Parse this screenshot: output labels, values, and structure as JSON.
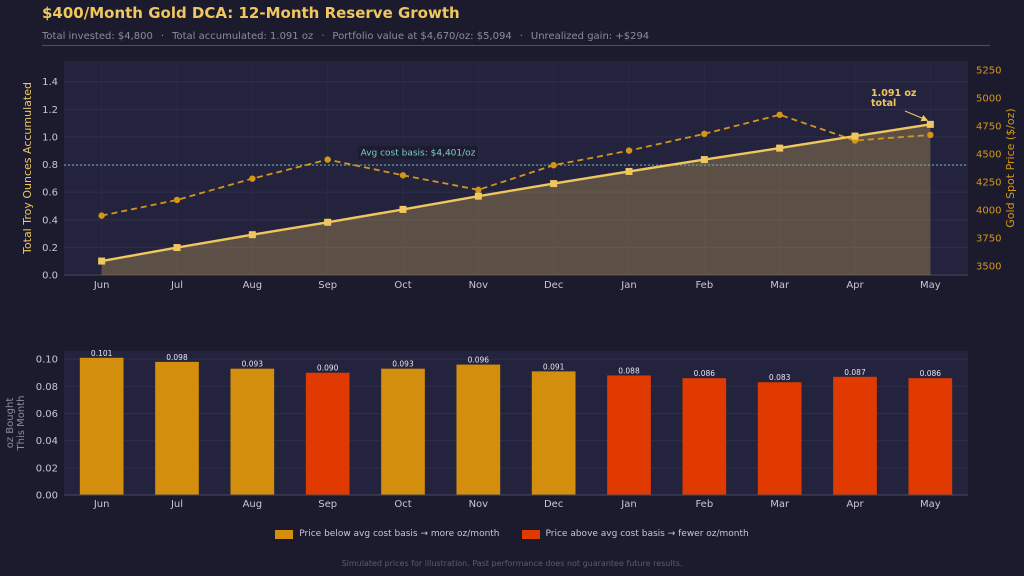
{
  "title": "$400/Month Gold DCA: 12-Month Reserve Growth",
  "summary": [
    "Total invested: $4,800",
    "Total accumulated: 1.091 oz",
    "Portfolio value at $4,670/oz: $5,094",
    "Unrealized gain: +$294"
  ],
  "summary_separator": "·",
  "colors": {
    "accent_gold": "#f0c75e",
    "price_line": "#d4961a",
    "bar_below": "#d28e0c",
    "bar_above": "#e03a00",
    "cost_line": "#5fb8a8"
  },
  "chart_data": [
    {
      "type": "line",
      "title": "",
      "categories": [
        "Jun",
        "Jul",
        "Aug",
        "Sep",
        "Oct",
        "Nov",
        "Dec",
        "Jan",
        "Feb",
        "Mar",
        "Apr",
        "May"
      ],
      "ylabel": "Total Troy Ounces Accumulated",
      "ylim": [
        0,
        1.55
      ],
      "yticks": [
        0.0,
        0.2,
        0.4,
        0.6,
        0.8,
        1.0,
        1.2,
        1.4
      ],
      "y2label": "Gold Spot Price ($/oz)",
      "y2lim": [
        3420,
        5330
      ],
      "y2ticks": [
        3500,
        3750,
        4000,
        4250,
        4500,
        4750,
        5000,
        5250
      ],
      "grid": true,
      "series": [
        {
          "name": "",
          "axis": "left",
          "style": "solid-area",
          "values": [
            0.101,
            0.199,
            0.292,
            0.382,
            0.475,
            0.571,
            0.662,
            0.75,
            0.836,
            0.919,
            1.006,
            1.091
          ]
        },
        {
          "name": "",
          "axis": "right",
          "style": "dashed",
          "values": [
            3950,
            4090,
            4280,
            4450,
            4310,
            4180,
            4400,
            4530,
            4680,
            4850,
            4620,
            4670
          ]
        }
      ],
      "reference_line": {
        "label": "Avg cost basis: $4,401/oz",
        "value": 4401,
        "axis": "right"
      },
      "annotation": {
        "line1": "1.091 oz",
        "line2": "total",
        "target_index": 11
      }
    },
    {
      "type": "bar",
      "title": "",
      "categories": [
        "Jun",
        "Jul",
        "Aug",
        "Sep",
        "Oct",
        "Nov",
        "Dec",
        "Jan",
        "Feb",
        "Mar",
        "Apr",
        "May"
      ],
      "values": [
        0.101,
        0.098,
        0.093,
        0.09,
        0.093,
        0.096,
        0.091,
        0.088,
        0.086,
        0.083,
        0.087,
        0.086
      ],
      "value_labels": [
        "0.101",
        "0.098",
        "0.093",
        "0.090",
        "0.093",
        "0.096",
        "0.091",
        "0.088",
        "0.086",
        "0.083",
        "0.087",
        "0.086"
      ],
      "groups": [
        "below",
        "below",
        "below",
        "above",
        "below",
        "below",
        "below",
        "above",
        "above",
        "above",
        "above",
        "above"
      ],
      "ylabel_lines": [
        "oz Bought",
        "This Month"
      ],
      "ylim": [
        0,
        0.106
      ],
      "yticks": [
        0.0,
        0.02,
        0.04,
        0.06,
        0.08,
        0.1
      ],
      "ytick_labels": [
        "0.00",
        "0.02",
        "0.04",
        "0.06",
        "0.08",
        "0.10"
      ],
      "grid": true,
      "legend": {
        "placement": "bottom-center",
        "entries": [
          {
            "group": "below",
            "label": "Price below avg cost basis → more oz/month"
          },
          {
            "group": "above",
            "label": "Price above avg cost basis → fewer oz/month"
          }
        ]
      }
    }
  ],
  "footnote": "Simulated prices for illustration. Past performance does not guarantee future results."
}
